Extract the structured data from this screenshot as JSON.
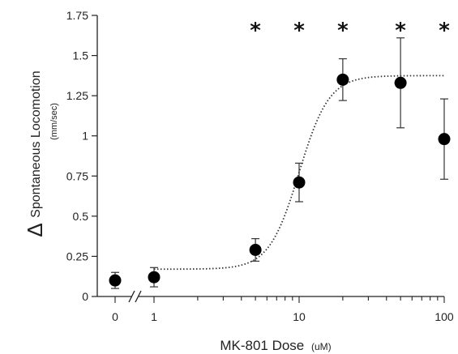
{
  "chart_data": {
    "type": "scatter",
    "title": "",
    "xlabel_main": "MK-801 Dose",
    "xlabel_unit": "(uM)",
    "ylabel_delta": "Δ",
    "ylabel_main": "Spontaneous Locomotion",
    "ylabel_unit": "(mm/sec)",
    "x_scale": "log",
    "xlim": [
      1,
      100
    ],
    "ylim": [
      0,
      1.75
    ],
    "y_ticks": [
      0,
      0.25,
      0.5,
      0.75,
      1,
      1.25,
      1.5,
      1.75
    ],
    "y_tick_labels": [
      "0",
      "0.25",
      "0.5",
      "0.75",
      "1",
      "1.25",
      "1.5",
      "1.75"
    ],
    "x_tick_labels": [
      "0",
      "1",
      "10",
      "100"
    ],
    "axis_break": true,
    "zero_point": {
      "x_label": "0",
      "y": 0.1,
      "err": 0.05
    },
    "points": [
      {
        "x": 1,
        "y": 0.12,
        "err": 0.06
      },
      {
        "x": 5,
        "y": 0.29,
        "err": 0.07
      },
      {
        "x": 10,
        "y": 0.71,
        "err": 0.12
      },
      {
        "x": 20,
        "y": 1.35,
        "err": 0.13
      },
      {
        "x": 50,
        "y": 1.33,
        "err": 0.28
      },
      {
        "x": 100,
        "y": 0.98,
        "err": 0.25
      }
    ],
    "significance": {
      "symbol": "*",
      "x": [
        5,
        10,
        20,
        50,
        100
      ]
    },
    "fit": {
      "type": "sigmoid",
      "bottom": 0.17,
      "top": 1.375,
      "ec50": 10,
      "hill": 4.2,
      "style": "dotted"
    }
  }
}
